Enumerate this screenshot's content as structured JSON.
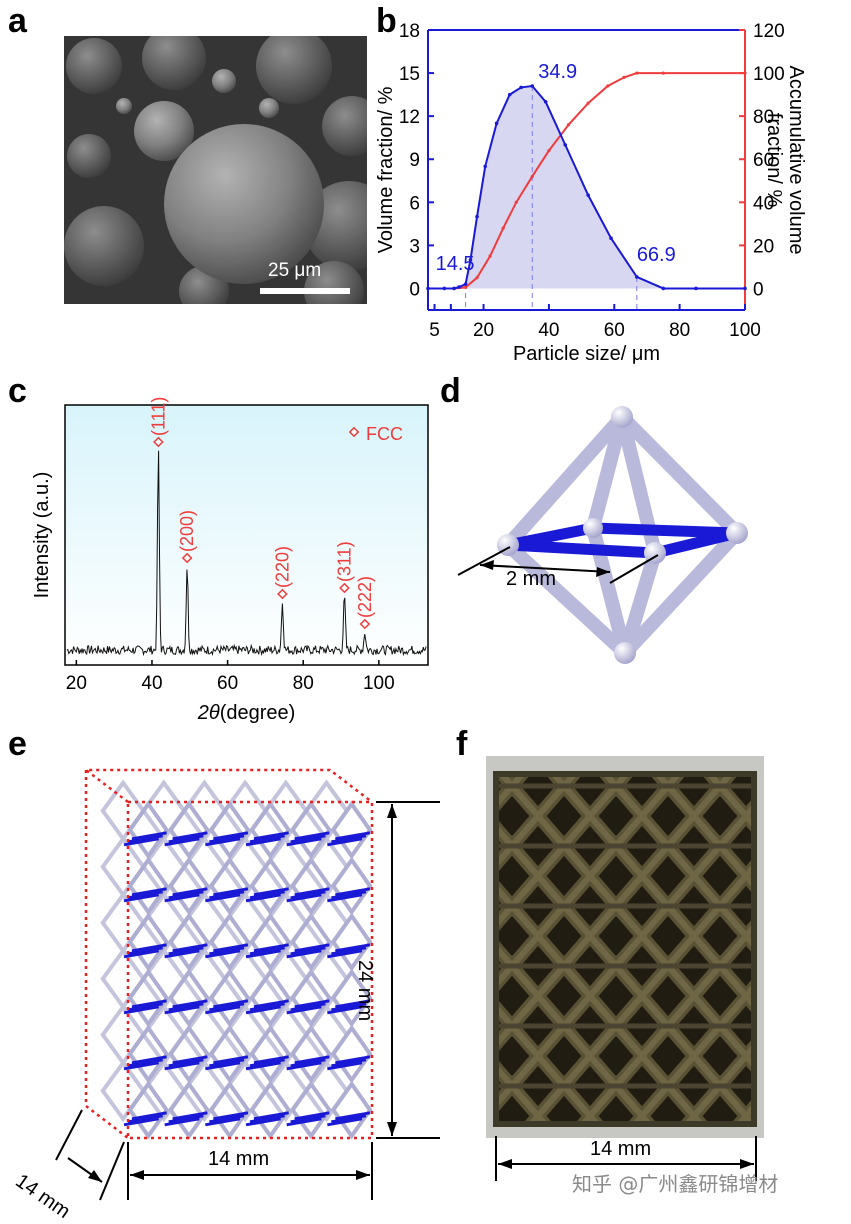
{
  "panels": {
    "a": "a",
    "b": "b",
    "c": "c",
    "d": "d",
    "e": "e",
    "f": "f"
  },
  "panel_a": {
    "scale_bar": "25 μm"
  },
  "panel_d": {
    "dim": "2 mm"
  },
  "panel_e": {
    "height": "24 mm",
    "width": "14 mm",
    "depth": "14 mm"
  },
  "panel_f": {
    "width": "14 mm"
  },
  "watermark": "知乎 @广州鑫研锦增材",
  "colors": {
    "blue": "#1a1ad6",
    "red": "#f03c3c",
    "fill": "#c9c9ee",
    "xrd_bg_top": "#d8f4fb"
  },
  "chart_data": [
    {
      "id": "b",
      "type": "line",
      "xlabel": "Particle size/ μm",
      "ylabel_left": "Volume fraction/ %",
      "ylabel_right_1": "Accumulative volume",
      "ylabel_right_2": "fraction/ %",
      "x_ticks": [
        5,
        10,
        20,
        40,
        60,
        80,
        100
      ],
      "x_tick_labels": [
        "5",
        "",
        "20",
        "40",
        "60",
        "80",
        "100"
      ],
      "xlim": [
        3,
        100
      ],
      "ylim_left": [
        -1.5,
        18
      ],
      "left_ticks": [
        0,
        3,
        6,
        9,
        12,
        15,
        18
      ],
      "ylim_right": [
        -10,
        120
      ],
      "right_ticks": [
        0,
        20,
        40,
        60,
        80,
        100,
        120
      ],
      "annotations": [
        {
          "label": "14.5",
          "x": 14.5
        },
        {
          "label": "34.9",
          "x": 34.9
        },
        {
          "label": "66.9",
          "x": 66.9
        }
      ],
      "series": [
        {
          "name": "Volume fraction",
          "axis": "left",
          "x": [
            3,
            8,
            11,
            12.5,
            14.5,
            16,
            18,
            20.5,
            24,
            28,
            31.5,
            34.9,
            39,
            45,
            52,
            59,
            66.9,
            75,
            85,
            100
          ],
          "values": [
            0,
            0,
            0,
            0.1,
            0.3,
            2,
            5,
            8.5,
            11.5,
            13.5,
            14,
            14.1,
            13,
            10,
            6.5,
            3.5,
            0.8,
            0,
            0,
            0
          ]
        },
        {
          "name": "Accumulative volume fraction",
          "axis": "right",
          "x": [
            3,
            11,
            14.5,
            18,
            22,
            26,
            30,
            34.9,
            40,
            46,
            52,
            58,
            63,
            66.9,
            75,
            100
          ],
          "values": [
            0,
            0,
            0.5,
            5,
            15,
            28,
            40,
            52,
            64,
            76,
            86,
            94,
            98,
            100,
            100,
            100
          ]
        }
      ]
    },
    {
      "id": "c",
      "type": "line",
      "xlabel_symbol": "2θ",
      "xlabel_unit": "(degree)",
      "ylabel": "Intensity (a.u.)",
      "xlim": [
        17,
        113
      ],
      "x_ticks": [
        20,
        40,
        60,
        80,
        100
      ],
      "legend": "FCC",
      "peaks": [
        {
          "label": "(111)",
          "x": 41.7,
          "height": 1.0
        },
        {
          "label": "(200)",
          "x": 49.3,
          "height": 0.42
        },
        {
          "label": "(220)",
          "x": 74.5,
          "height": 0.24
        },
        {
          "label": "(311)",
          "x": 90.9,
          "height": 0.27
        },
        {
          "label": "(222)",
          "x": 96.3,
          "height": 0.09
        }
      ]
    }
  ]
}
